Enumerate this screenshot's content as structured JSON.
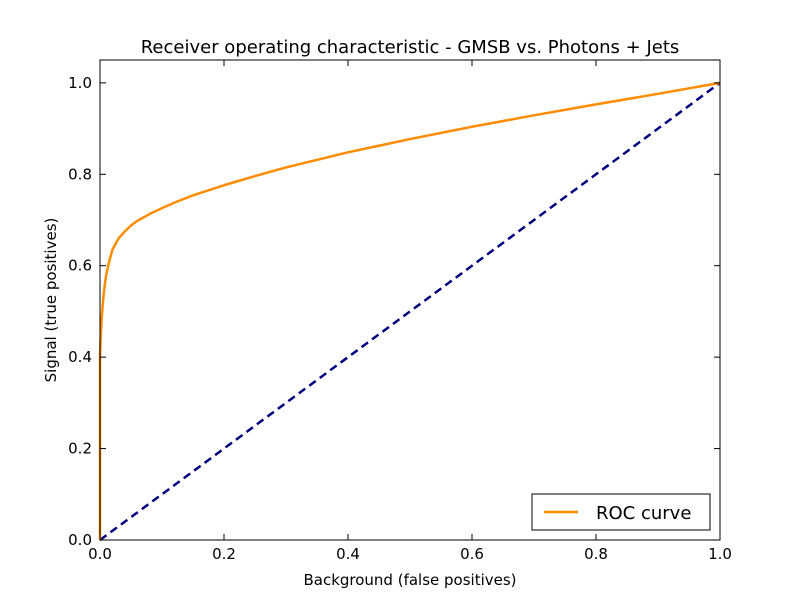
{
  "chart_data": {
    "type": "line",
    "title": "Receiver operating characteristic - GMSB vs. Photons + Jets",
    "xlabel": "Background (false positives)",
    "ylabel": "Signal (true positives)",
    "xlim": [
      0.0,
      1.0
    ],
    "ylim": [
      0.0,
      1.05
    ],
    "xticks": [
      0.0,
      0.2,
      0.4,
      0.6,
      0.8,
      1.0
    ],
    "xtick_labels": [
      "0.0",
      "0.2",
      "0.4",
      "0.6",
      "0.8",
      "1.0"
    ],
    "yticks": [
      0.0,
      0.2,
      0.4,
      0.6,
      0.8,
      1.0
    ],
    "ytick_labels": [
      "0.0",
      "0.2",
      "0.4",
      "0.6",
      "0.8",
      "1.0"
    ],
    "grid": false,
    "legend": {
      "location": "lower-right",
      "entries": [
        "ROC curve"
      ]
    },
    "series": [
      {
        "name": "ROC curve",
        "color": "#ff8c00",
        "style": "solid",
        "x": [
          0.0,
          0.0,
          0.001,
          0.003,
          0.006,
          0.01,
          0.015,
          0.02,
          0.03,
          0.04,
          0.05,
          0.06,
          0.08,
          0.1,
          0.12,
          0.15,
          0.2,
          0.25,
          0.3,
          0.4,
          0.5,
          0.6,
          0.7,
          0.8,
          0.9,
          1.0
        ],
        "y": [
          0.0,
          0.4,
          0.44,
          0.49,
          0.54,
          0.58,
          0.61,
          0.635,
          0.66,
          0.675,
          0.688,
          0.698,
          0.713,
          0.726,
          0.738,
          0.754,
          0.776,
          0.796,
          0.815,
          0.848,
          0.877,
          0.904,
          0.929,
          0.953,
          0.976,
          1.0
        ]
      },
      {
        "name": "",
        "color": "#000080",
        "style": "dashed",
        "x": [
          0.0,
          1.0
        ],
        "y": [
          0.0,
          1.0
        ]
      }
    ]
  }
}
